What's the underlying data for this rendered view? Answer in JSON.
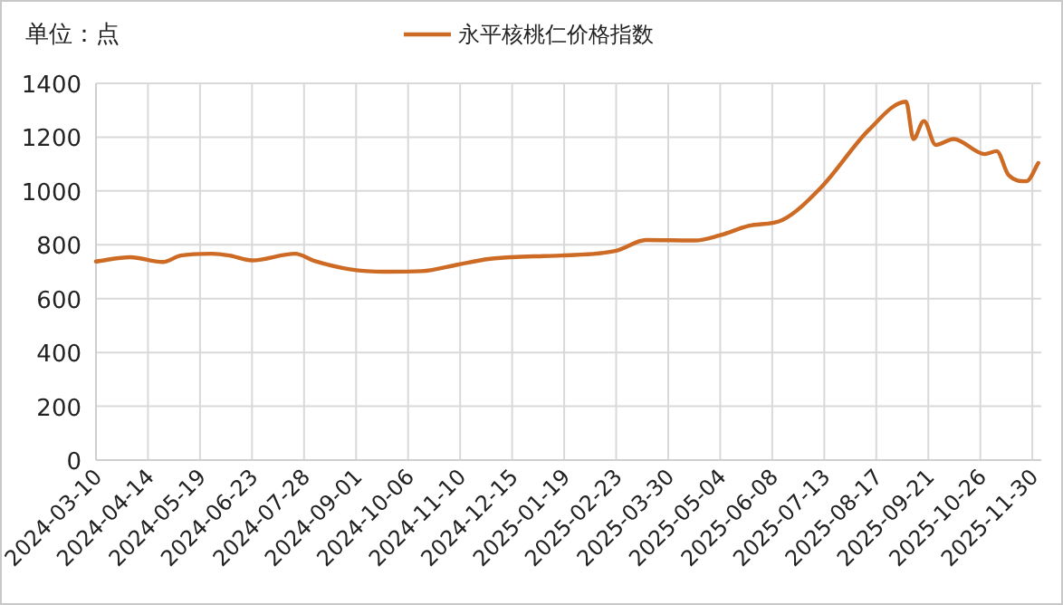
{
  "chart_data": {
    "type": "line",
    "annotations": [
      "单位：点"
    ],
    "x": [
      "2024-03-10",
      "2024-04-02",
      "2024-04-24",
      "2024-05-06",
      "2024-05-27",
      "2024-06-08",
      "2024-06-23",
      "2024-07-22",
      "2024-08-04",
      "2024-08-28",
      "2024-09-21",
      "2024-10-15",
      "2024-11-09",
      "2024-11-29",
      "2024-12-15",
      "2025-01-05",
      "2025-01-17",
      "2025-02-23",
      "2025-03-15",
      "2025-04-17",
      "2025-05-03",
      "2025-05-23",
      "2025-06-15",
      "2025-07-11",
      "2025-08-12",
      "2025-09-06",
      "2025-09-11",
      "2025-09-18",
      "2025-09-26",
      "2025-10-08",
      "2025-10-29",
      "2025-11-06",
      "2025-11-14",
      "2025-11-26",
      "2025-12-04"
    ],
    "series": [
      {
        "name": "永平核桃仁价格指数",
        "color": "#cd6a24",
        "values": [
          738,
          754,
          736,
          760,
          767,
          760,
          742,
          767,
          740,
          709,
          700,
          702,
          727,
          747,
          754,
          758,
          760,
          778,
          818,
          816,
          834,
          870,
          893,
          1014,
          1227,
          1332,
          1193,
          1260,
          1171,
          1193,
          1137,
          1148,
          1059,
          1036,
          1104
        ]
      }
    ],
    "xlim": [
      "2024-03-10",
      "2025-12-06"
    ],
    "xticks": [
      "2024-03-10",
      "2024-04-14",
      "2024-05-19",
      "2024-06-23",
      "2024-07-28",
      "2024-09-01",
      "2024-10-06",
      "2024-11-10",
      "2024-12-15",
      "2025-01-19",
      "2025-02-23",
      "2025-03-30",
      "2025-05-04",
      "2025-06-08",
      "2025-07-13",
      "2025-08-17",
      "2025-09-21",
      "2025-10-26",
      "2025-11-30"
    ],
    "ylim": [
      0,
      1400
    ],
    "yticks": [
      0,
      200,
      400,
      600,
      800,
      1000,
      1200,
      1400
    ],
    "grid": true,
    "legend": "top",
    "marker": "none",
    "line_style": "solid"
  }
}
